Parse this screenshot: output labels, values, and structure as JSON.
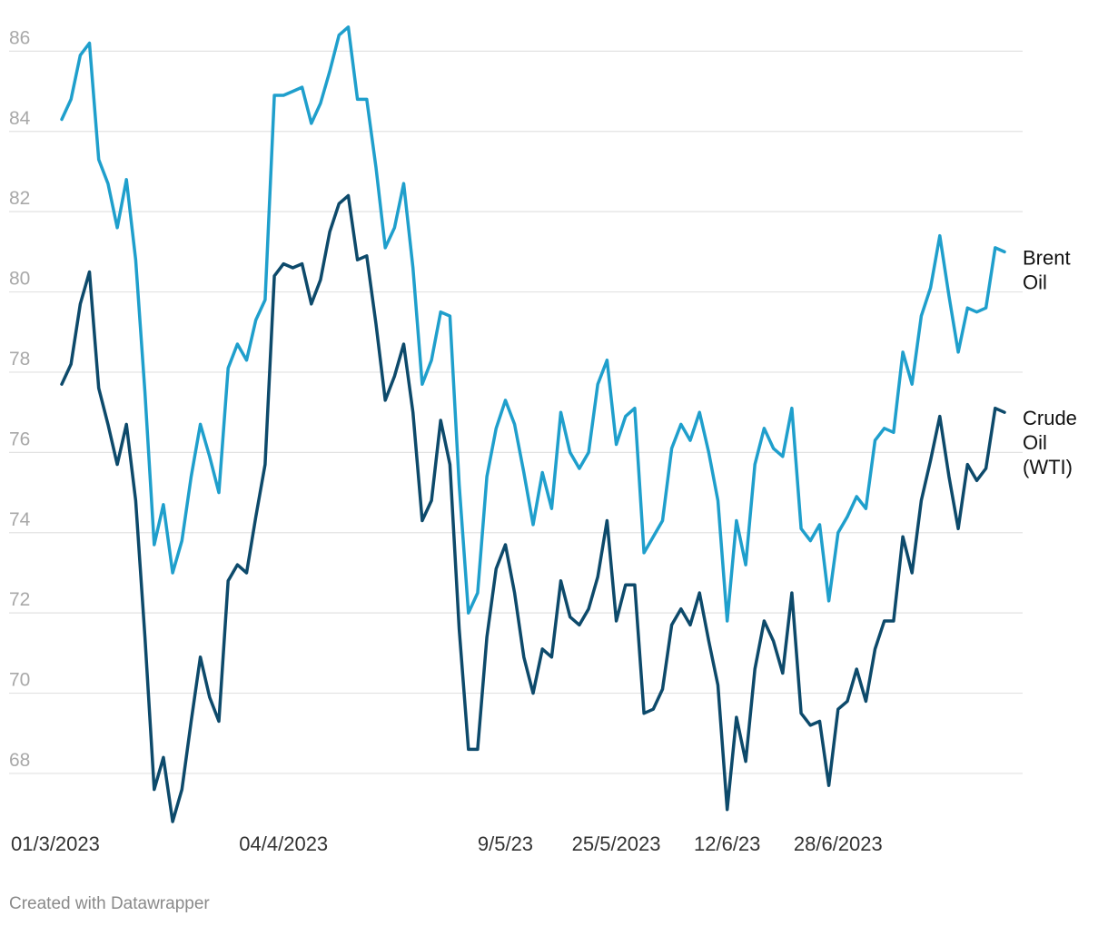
{
  "chart_data": {
    "type": "line",
    "title": "",
    "xlabel": "",
    "ylabel": "",
    "ylim": [
      66.8,
      86.8
    ],
    "yticks": [
      68,
      70,
      72,
      74,
      76,
      78,
      80,
      82,
      84,
      86
    ],
    "grid": true,
    "legend": "inline-right",
    "x_tick_labels": [
      {
        "index": 0,
        "label": "01/3/2023"
      },
      {
        "index": 24,
        "label": "04/4/2023"
      },
      {
        "index": 48,
        "label": "9/5/23"
      },
      {
        "index": 60,
        "label": "25/5/2023"
      },
      {
        "index": 72,
        "label": "12/6/23"
      },
      {
        "index": 84,
        "label": "28/6/2023"
      }
    ],
    "series": [
      {
        "name": "Brent Oil",
        "label_lines": [
          "Brent",
          "Oil"
        ],
        "color": "#1f9fcc",
        "values": [
          84.3,
          84.8,
          85.9,
          86.2,
          83.3,
          82.7,
          81.6,
          82.8,
          80.8,
          77.5,
          73.7,
          74.7,
          73.0,
          73.8,
          75.4,
          76.7,
          75.9,
          75.0,
          78.1,
          78.7,
          78.3,
          79.3,
          79.8,
          84.9,
          84.9,
          85.0,
          85.1,
          84.2,
          84.7,
          85.5,
          86.4,
          86.6,
          84.8,
          84.8,
          83.1,
          81.1,
          81.6,
          82.7,
          80.6,
          77.7,
          78.3,
          79.5,
          79.4,
          75.2,
          72.0,
          72.5,
          75.4,
          76.6,
          77.3,
          76.7,
          75.5,
          74.2,
          75.5,
          74.6,
          77.0,
          76.0,
          75.6,
          76.0,
          77.7,
          78.3,
          76.2,
          76.9,
          77.1,
          73.5,
          73.9,
          74.3,
          76.1,
          76.7,
          76.3,
          77.0,
          76.0,
          74.8,
          71.8,
          74.3,
          73.2,
          75.7,
          76.6,
          76.1,
          75.9,
          77.1,
          74.1,
          73.8,
          74.2,
          72.3,
          74.0,
          74.4,
          74.9,
          74.6,
          76.3,
          76.6,
          76.5,
          78.5,
          77.7,
          79.4,
          80.1,
          81.4,
          79.9,
          78.5,
          79.6,
          79.5,
          79.6,
          81.1,
          81.0
        ]
      },
      {
        "name": "Crude Oil (WTI)",
        "label_lines": [
          "Crude",
          "Oil",
          "(WTI)"
        ],
        "color": "#0d4a6b",
        "values": [
          77.7,
          78.2,
          79.7,
          80.5,
          77.6,
          76.7,
          75.7,
          76.7,
          74.8,
          71.4,
          67.6,
          68.4,
          66.8,
          67.6,
          69.3,
          70.9,
          69.9,
          69.3,
          72.8,
          73.2,
          73.0,
          74.4,
          75.7,
          80.4,
          80.7,
          80.6,
          80.7,
          79.7,
          80.3,
          81.5,
          82.2,
          82.4,
          80.8,
          80.9,
          79.2,
          77.3,
          77.9,
          78.7,
          77.0,
          74.3,
          74.8,
          76.8,
          75.7,
          71.6,
          68.6,
          68.6,
          71.4,
          73.1,
          73.7,
          72.5,
          70.9,
          70.0,
          71.1,
          70.9,
          72.8,
          71.9,
          71.7,
          72.1,
          72.9,
          74.3,
          71.8,
          72.7,
          72.7,
          69.5,
          69.6,
          70.1,
          71.7,
          72.1,
          71.7,
          72.5,
          71.3,
          70.2,
          67.1,
          69.4,
          68.3,
          70.6,
          71.8,
          71.3,
          70.5,
          72.5,
          69.5,
          69.2,
          69.3,
          67.7,
          69.6,
          69.8,
          70.6,
          69.8,
          71.1,
          71.8,
          71.8,
          73.9,
          73.0,
          74.8,
          75.8,
          76.9,
          75.4,
          74.1,
          75.7,
          75.3,
          75.6,
          77.1,
          77.0
        ]
      }
    ]
  },
  "footer": {
    "credit": "Created with Datawrapper"
  }
}
